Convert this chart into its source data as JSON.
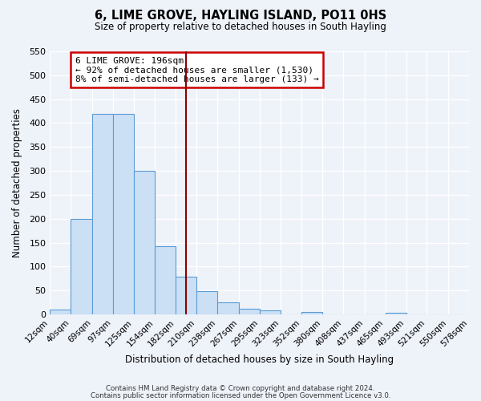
{
  "title": "6, LIME GROVE, HAYLING ISLAND, PO11 0HS",
  "subtitle": "Size of property relative to detached houses in South Hayling",
  "xlabel": "Distribution of detached houses by size in South Hayling",
  "ylabel": "Number of detached properties",
  "bar_heights": [
    10,
    200,
    420,
    420,
    300,
    143,
    78,
    48,
    25,
    12,
    8,
    0,
    5,
    0,
    0,
    0,
    3,
    0,
    0,
    0
  ],
  "bin_edges": [
    12,
    40,
    69,
    97,
    125,
    154,
    182,
    210,
    238,
    267,
    295,
    323,
    352,
    380,
    408,
    437,
    465,
    493,
    521,
    550,
    578
  ],
  "bin_labels": [
    "12sqm",
    "40sqm",
    "69sqm",
    "97sqm",
    "125sqm",
    "154sqm",
    "182sqm",
    "210sqm",
    "238sqm",
    "267sqm",
    "295sqm",
    "323sqm",
    "352sqm",
    "380sqm",
    "408sqm",
    "437sqm",
    "465sqm",
    "493sqm",
    "521sqm",
    "550sqm",
    "578sqm"
  ],
  "bar_color": "#cce0f5",
  "bar_edge_color": "#5b9bd5",
  "vline_x": 196,
  "vline_color": "#8b0000",
  "annotation_title": "6 LIME GROVE: 196sqm",
  "annotation_line1": "← 92% of detached houses are smaller (1,530)",
  "annotation_line2": "8% of semi-detached houses are larger (133) →",
  "annotation_box_color": "#ffffff",
  "annotation_box_edge": "#cc0000",
  "ylim": [
    0,
    550
  ],
  "yticks": [
    0,
    50,
    100,
    150,
    200,
    250,
    300,
    350,
    400,
    450,
    500,
    550
  ],
  "footnote1": "Contains HM Land Registry data © Crown copyright and database right 2024.",
  "footnote2": "Contains public sector information licensed under the Open Government Licence v3.0.",
  "background_color": "#eef2f9",
  "grid_color": "#ffffff"
}
